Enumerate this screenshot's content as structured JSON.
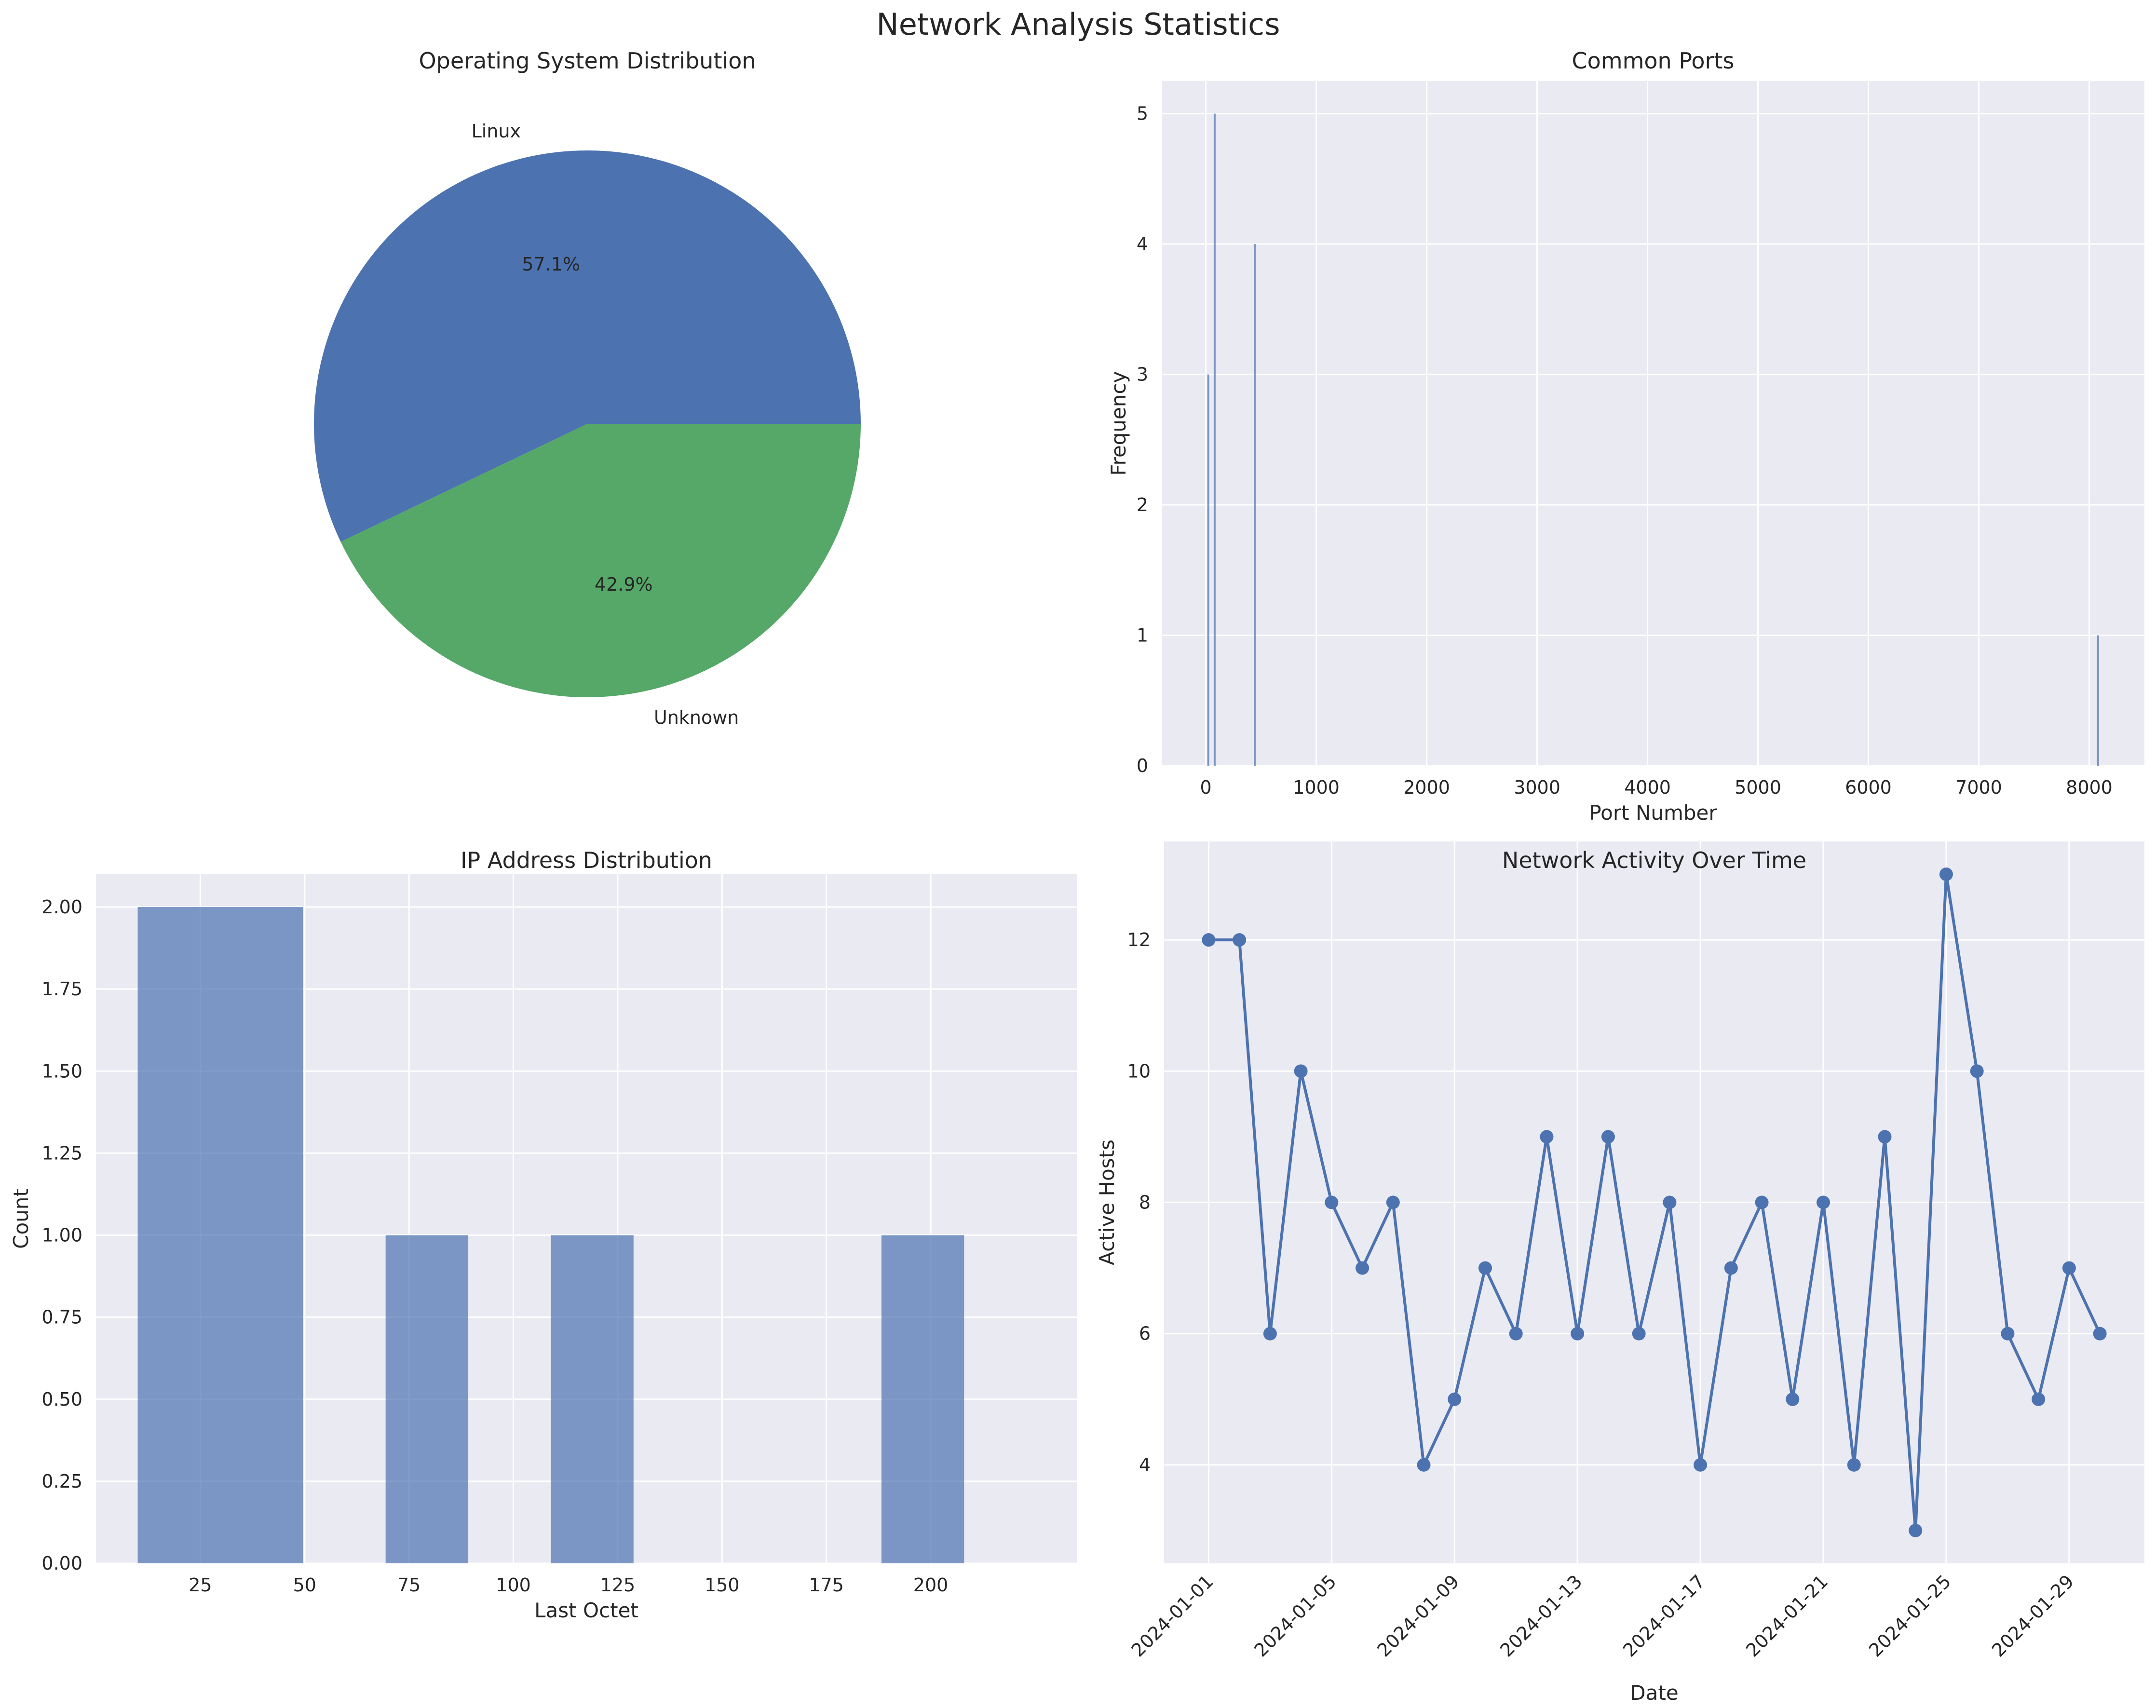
{
  "figure": {
    "title": "Network Analysis Statistics"
  },
  "colors": {
    "blue": "#4c72b0",
    "green": "#55a868",
    "axes_bg": "#eaeaf2",
    "grid": "#ffffff",
    "text": "#262626"
  },
  "chart_data": [
    {
      "id": "os",
      "type": "pie",
      "title": "Operating System Distribution",
      "labels": [
        "Linux",
        "Unknown"
      ],
      "values": [
        57.1,
        42.9
      ],
      "autopct_labels": [
        "57.1%",
        "42.9%"
      ],
      "colors": [
        "#4c72b0",
        "#55a868"
      ]
    },
    {
      "id": "ports",
      "type": "bar",
      "title": "Common Ports",
      "xlabel": "Port Number",
      "ylabel": "Frequency",
      "xlim": [
        -400,
        8500
      ],
      "ylim": [
        0,
        5.25
      ],
      "xticks": [
        0,
        1000,
        2000,
        3000,
        4000,
        5000,
        6000,
        7000,
        8000
      ],
      "yticks": [
        0,
        1,
        2,
        3,
        4,
        5
      ],
      "grid": true,
      "bars": [
        {
          "x": 22,
          "value": 3
        },
        {
          "x": 80,
          "value": 5
        },
        {
          "x": 443,
          "value": 4
        },
        {
          "x": 8080,
          "value": 1
        }
      ]
    },
    {
      "id": "ip",
      "type": "bar",
      "title": "IP Address Distribution",
      "xlabel": "Last Octet",
      "ylabel": "Count",
      "xlim": [
        0,
        235
      ],
      "ylim": [
        0,
        2.1
      ],
      "xticks": [
        25,
        50,
        75,
        100,
        125,
        150,
        175,
        200
      ],
      "yticks": [
        "0.00",
        "0.25",
        "0.50",
        "0.75",
        "1.00",
        "1.25",
        "1.50",
        "1.75",
        "2.00"
      ],
      "grid": true,
      "bins": [
        {
          "start": 10,
          "end": 49.6,
          "count": 2
        },
        {
          "start": 69.4,
          "end": 89.2,
          "count": 1
        },
        {
          "start": 109,
          "end": 128.8,
          "count": 1
        },
        {
          "start": 188.2,
          "end": 208,
          "count": 1
        }
      ]
    },
    {
      "id": "activity",
      "type": "line",
      "title": "Network Activity Over Time",
      "xlabel": "Date",
      "ylabel": "Active Hosts",
      "ylim": [
        2.5,
        13.5
      ],
      "yticks": [
        4,
        6,
        8,
        10,
        12
      ],
      "xtick_labels": [
        "2024-01-01",
        "2024-01-05",
        "2024-01-09",
        "2024-01-13",
        "2024-01-17",
        "2024-01-21",
        "2024-01-25",
        "2024-01-29"
      ],
      "grid": true,
      "x": [
        "2024-01-01",
        "2024-01-02",
        "2024-01-03",
        "2024-01-04",
        "2024-01-05",
        "2024-01-06",
        "2024-01-07",
        "2024-01-08",
        "2024-01-09",
        "2024-01-10",
        "2024-01-11",
        "2024-01-12",
        "2024-01-13",
        "2024-01-14",
        "2024-01-15",
        "2024-01-16",
        "2024-01-17",
        "2024-01-18",
        "2024-01-19",
        "2024-01-20",
        "2024-01-21",
        "2024-01-22",
        "2024-01-23",
        "2024-01-24",
        "2024-01-25",
        "2024-01-26",
        "2024-01-27",
        "2024-01-28",
        "2024-01-29",
        "2024-01-30"
      ],
      "values": [
        12,
        12,
        6,
        10,
        8,
        7,
        8,
        4,
        5,
        7,
        6,
        9,
        6,
        9,
        6,
        8,
        4,
        7,
        8,
        5,
        8,
        4,
        9,
        3,
        13,
        10,
        6,
        5,
        7,
        6
      ]
    }
  ]
}
